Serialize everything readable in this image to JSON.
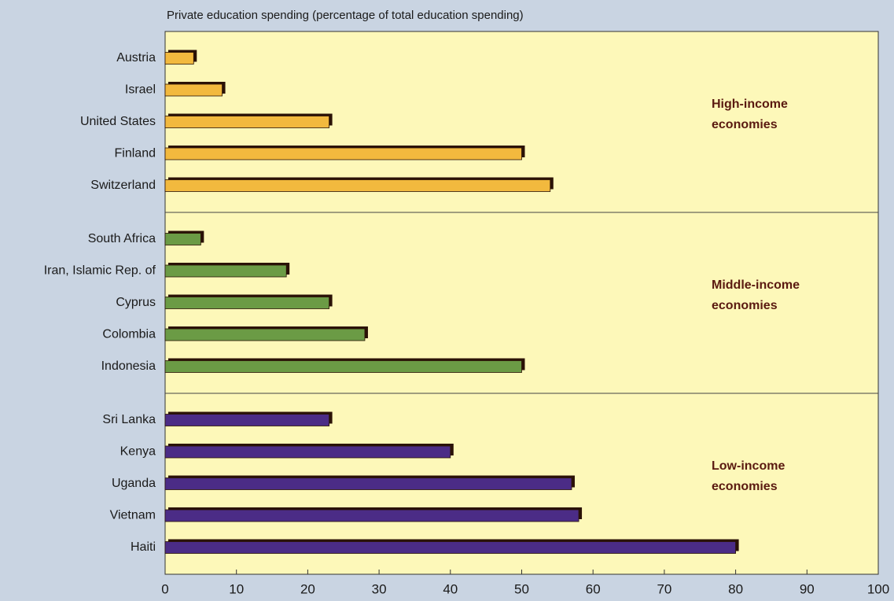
{
  "chart_data": {
    "type": "bar",
    "title": "Private education spending (percentage of total education spending)",
    "xlim": [
      0,
      100
    ],
    "xticks": [
      0,
      10,
      20,
      30,
      40,
      50,
      60,
      70,
      80,
      90,
      100
    ],
    "series": [
      {
        "name": "High-income economies",
        "color": "#f2b93e",
        "categories": [
          "Austria",
          "Israel",
          "United States",
          "Finland",
          "Switzerland"
        ],
        "values": [
          4,
          8,
          23,
          50,
          54
        ]
      },
      {
        "name": "Middle-income economies",
        "color": "#6b9b45",
        "categories": [
          "South Africa",
          "Iran, Islamic Rep. of",
          "Cyprus",
          "Colombia",
          "Indonesia"
        ],
        "values": [
          5,
          17,
          23,
          28,
          50
        ]
      },
      {
        "name": "Low-income economies",
        "color": "#4b2c86",
        "categories": [
          "Sri Lanka",
          "Kenya",
          "Uganda",
          "Vietnam",
          "Haiti"
        ],
        "values": [
          23,
          40,
          57,
          58,
          80
        ]
      }
    ]
  }
}
